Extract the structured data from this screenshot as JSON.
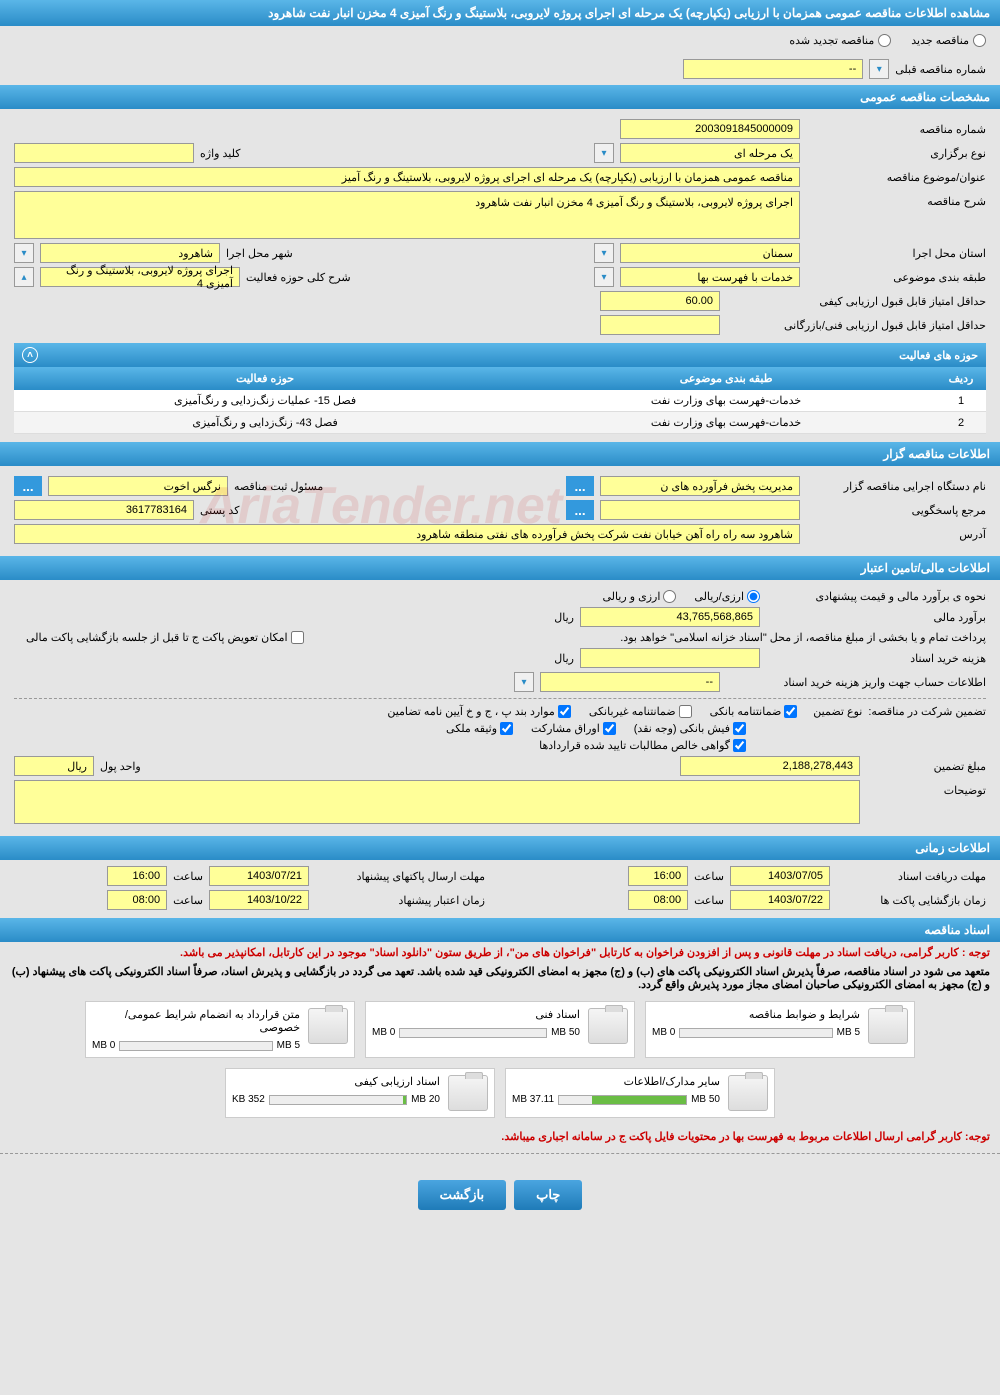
{
  "page_title": "مشاهده اطلاعات مناقصه عمومی همزمان با ارزیابی (یکپارچه) یک مرحله ای اجرای پروژه لایروبی، بلاستینگ و رنگ آمیزی 4 مخزن انبار نفت شاهرود",
  "radios": {
    "new": "مناقصه جدید",
    "renewed": "مناقصه تجدید شده"
  },
  "prev_number": {
    "label": "شماره مناقصه قبلی",
    "value": "--"
  },
  "sections": {
    "general": "مشخصات مناقصه عمومی",
    "activity": "حوزه های فعالیت",
    "organizer": "اطلاعات مناقصه گزار",
    "financial": "اطلاعات مالی/تامین اعتبار",
    "timing": "اطلاعات زمانی",
    "docs": "اسناد مناقصه"
  },
  "general": {
    "tender_no_lbl": "شماره مناقصه",
    "tender_no": "2003091845000009",
    "type_lbl": "نوع برگزاری",
    "type": "یک مرحله ای",
    "keyword_lbl": "کلید واژه",
    "keyword": "",
    "title_lbl": "عنوان/موضوع مناقصه",
    "title": "مناقصه عمومی همزمان با ارزیابی (یکپارچه) یک مرحله ای اجرای پروژه لایروبی، بلاستینگ و رنگ آمیز",
    "desc_lbl": "شرح مناقصه",
    "desc": "اجرای پروژه لایروبی، بلاستینگ و رنگ آمیزی 4 مخزن انبار نفت شاهرود",
    "province_lbl": "استان محل اجرا",
    "province": "سمنان",
    "city_lbl": "شهر محل اجرا",
    "city": "شاهرود",
    "category_lbl": "طبقه بندی موضوعی",
    "category": "خدمات با فهرست بها",
    "activity_summary_lbl": "شرح کلی حوزه فعالیت",
    "activity_summary": "اجرای پروژه لایروبی، بلاستینگ و رنگ آمیزی 4",
    "min_qual_lbl": "حداقل امتیاز قابل قبول ارزیابی کیفی",
    "min_qual": "60.00",
    "min_tech_lbl": "حداقل امتیاز قابل قبول ارزیابی فنی/بازرگانی",
    "min_tech": ""
  },
  "activity_table": {
    "cols": [
      "ردیف",
      "طبقه بندی موضوعی",
      "حوزه فعالیت"
    ],
    "rows": [
      [
        "1",
        "خدمات-فهرست بهای وزارت نفت",
        "فصل 15- عملیات زنگ‌زدایی و رنگ‌آمیزی"
      ],
      [
        "2",
        "خدمات-فهرست بهای وزارت نفت",
        "فصل 43- زنگ‌زدایی و رنگ‌آمیزی"
      ]
    ]
  },
  "organizer": {
    "name_lbl": "نام دستگاه اجرایی مناقصه گزار",
    "name": "مدیریت پخش فرآورده های ن",
    "registrar_lbl": "مسئول ثبت مناقصه",
    "registrar": "نرگس اخوت",
    "contact_lbl": "مرجع پاسخگویی",
    "contact": "",
    "postal_lbl": "کد پستی",
    "postal": "3617783164",
    "address_lbl": "آدرس",
    "address": "شاهرود سه راه راه آهن خیابان نفت شرکت  پخش فرآورده های نفتی منطقه شاهرود"
  },
  "financial": {
    "method_lbl": "نحوه ی برآورد مالی و قیمت پیشنهادی",
    "opt1": "ارزی/ریالی",
    "opt2": "ارزی و ریالی",
    "estimate_lbl": "برآورد مالی",
    "estimate": "43,765,568,865",
    "unit": "ریال",
    "source_note": "پرداخت تمام و یا بخشی از مبلغ مناقصه، از محل \"اسناد خزانه اسلامی\" خواهد بود.",
    "exchange_lbl": "امکان تعویض پاکت ج تا قبل از جلسه بازگشایی پاکت مالی",
    "doc_fee_lbl": "هزینه خرید اسناد",
    "doc_fee": "",
    "account_lbl": "اطلاعات حساب جهت واریز هزینه خرید اسناد",
    "account": "--",
    "guarantee_lbl": "تضمین شرکت در مناقصه:",
    "guarantee_type_lbl": "نوع تضمین",
    "g1": "ضمانتنامه بانکی",
    "g2": "ضمانتنامه غیربانکی",
    "g3": "موارد بند پ ، ج و خ آیین نامه تضامین",
    "g4": "فیش بانکی (وجه نقد)",
    "g5": "اوراق مشارکت",
    "g6": "وثیقه ملکی",
    "g7": "گواهی خالص مطالبات تایید شده قراردادها",
    "amount_lbl": "مبلغ تضمین",
    "amount": "2,188,278,443",
    "currency_lbl": "واحد پول",
    "currency": "ریال",
    "notes_lbl": "توضیحات",
    "notes": ""
  },
  "timing": {
    "t1_lbl": "مهلت دریافت اسناد",
    "t1_date": "1403/07/05",
    "t1_time_lbl": "ساعت",
    "t1_time": "16:00",
    "t2_lbl": "مهلت ارسال پاکتهای پیشنهاد",
    "t2_date": "1403/07/21",
    "t2_time": "16:00",
    "t3_lbl": "زمان بازگشایی پاکت ها",
    "t3_date": "1403/07/22",
    "t3_time": "08:00",
    "t4_lbl": "زمان اعتبار پیشنهاد",
    "t4_date": "1403/10/22",
    "t4_time": "08:00",
    "time_lbl": "ساعت"
  },
  "docs": {
    "note1": "توجه : کاربر گرامی، دریافت اسناد در مهلت قانونی و پس از افزودن فراخوان به کارتابل \"فراخوان های من\"، از طریق ستون \"دانلود اسناد\" موجود در این کارتابل، امکانپذیر می باشد.",
    "note2": "متعهد می شود در اسناد مناقصه، صرفاً پذیرش اسناد الکترونیکی پاکت های (ب) و (ج) مجهز به امضای الکترونیکی قید شده باشد. تعهد می گردد در بازگشایی و پذیرش اسناد، صرفاً اسناد الکترونیکی پاکت های پیشنهاد (ب) و (ج) مجهز به امضای الکترونیکی صاحبان امضای مجاز مورد پذیرش واقع گردد.",
    "files": [
      {
        "title": "شرایط و ضوابط مناقصه",
        "used": "0 MB",
        "max": "5 MB",
        "pct": 0
      },
      {
        "title": "اسناد فنی",
        "used": "0 MB",
        "max": "50 MB",
        "pct": 0
      },
      {
        "title": "متن قرارداد به انضمام شرایط عمومی/خصوصی",
        "used": "0 MB",
        "max": "5 MB",
        "pct": 0
      },
      {
        "title": "سایر مدارک/اطلاعات",
        "used": "37.11 MB",
        "max": "50 MB",
        "pct": 74
      },
      {
        "title": "اسناد ارزیابی کیفی",
        "used": "352 KB",
        "max": "20 MB",
        "pct": 2
      }
    ],
    "footer_note": "توجه: کاربر گرامی ارسال اطلاعات مربوط به فهرست بها در محتویات فایل پاکت ج در سامانه اجباری میباشد."
  },
  "buttons": {
    "print": "چاپ",
    "back": "بازگشت"
  },
  "colors": {
    "header": "#2a8cc7",
    "field_bg": "#ffff99",
    "prog_fill": "#6abd45"
  }
}
